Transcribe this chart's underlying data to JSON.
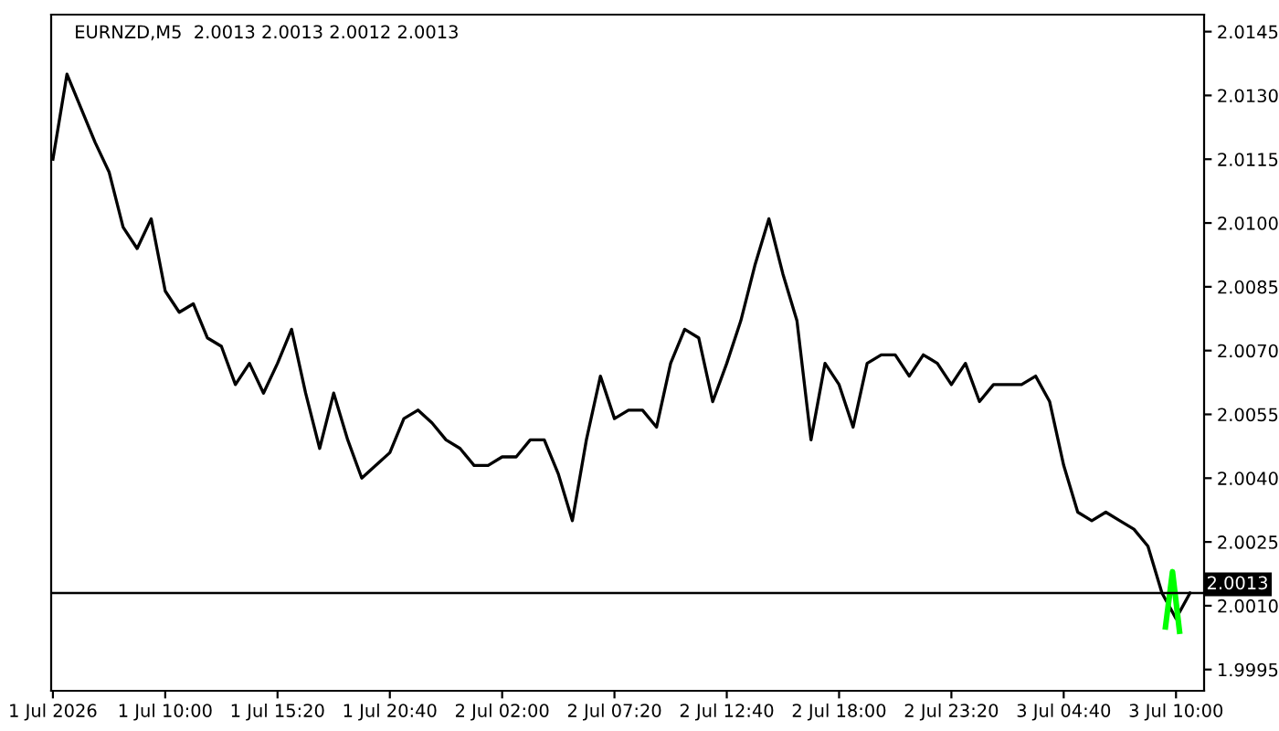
{
  "chart_data": {
    "type": "line",
    "title": "EURNZD,M5  2.0013 2.0013 2.0012 2.0013",
    "x": [
      "2026-07-01T04:40",
      "2026-07-01T05:20",
      "2026-07-01T06:00",
      "2026-07-01T06:40",
      "2026-07-01T07:20",
      "2026-07-01T08:00",
      "2026-07-01T08:40",
      "2026-07-01T09:20",
      "2026-07-01T10:00",
      "2026-07-01T10:40",
      "2026-07-01T11:20",
      "2026-07-01T12:00",
      "2026-07-01T12:40",
      "2026-07-01T13:20",
      "2026-07-01T14:00",
      "2026-07-01T14:40",
      "2026-07-01T15:20",
      "2026-07-01T16:00",
      "2026-07-01T16:40",
      "2026-07-01T17:20",
      "2026-07-01T18:00",
      "2026-07-01T18:40",
      "2026-07-01T19:20",
      "2026-07-01T20:00",
      "2026-07-01T20:40",
      "2026-07-01T21:20",
      "2026-07-01T22:00",
      "2026-07-01T22:40",
      "2026-07-01T23:20",
      "2026-07-02T00:00",
      "2026-07-02T00:40",
      "2026-07-02T01:20",
      "2026-07-02T02:00",
      "2026-07-02T02:40",
      "2026-07-02T03:20",
      "2026-07-02T04:00",
      "2026-07-02T04:40",
      "2026-07-02T05:20",
      "2026-07-02T06:00",
      "2026-07-02T06:40",
      "2026-07-02T07:20",
      "2026-07-02T08:00",
      "2026-07-02T08:40",
      "2026-07-02T09:20",
      "2026-07-02T10:00",
      "2026-07-02T10:40",
      "2026-07-02T11:20",
      "2026-07-02T12:00",
      "2026-07-02T12:40",
      "2026-07-02T13:20",
      "2026-07-02T14:00",
      "2026-07-02T14:40",
      "2026-07-02T15:20",
      "2026-07-02T16:00",
      "2026-07-02T16:40",
      "2026-07-02T17:20",
      "2026-07-02T18:00",
      "2026-07-02T18:40",
      "2026-07-02T19:20",
      "2026-07-02T20:00",
      "2026-07-02T20:40",
      "2026-07-02T21:20",
      "2026-07-02T22:00",
      "2026-07-02T22:40",
      "2026-07-02T23:20",
      "2026-07-03T00:00",
      "2026-07-03T00:40",
      "2026-07-03T01:20",
      "2026-07-03T02:00",
      "2026-07-03T02:40",
      "2026-07-03T03:20",
      "2026-07-03T04:00",
      "2026-07-03T04:40",
      "2026-07-03T05:20",
      "2026-07-03T06:00",
      "2026-07-03T06:40",
      "2026-07-03T07:20",
      "2026-07-03T08:00",
      "2026-07-03T08:40",
      "2026-07-03T09:20",
      "2026-07-03T10:00",
      "2026-07-03T10:40"
    ],
    "series": [
      {
        "color": "#000000",
        "values": [
          2.0115,
          2.0135,
          2.0127,
          2.0119,
          2.0112,
          2.0099,
          2.0094,
          2.0101,
          2.0084,
          2.0079,
          2.0081,
          2.0073,
          2.0071,
          2.0062,
          2.0067,
          2.006,
          2.0067,
          2.0075,
          2.006,
          2.0047,
          2.006,
          2.0049,
          2.004,
          2.0043,
          2.0046,
          2.0054,
          2.0056,
          2.0053,
          2.0049,
          2.0047,
          2.0043,
          2.0043,
          2.0045,
          2.0045,
          2.0049,
          2.0049,
          2.0041,
          2.003,
          2.0049,
          2.0064,
          2.0054,
          2.0056,
          2.0056,
          2.0052,
          2.0067,
          2.0075,
          2.0073,
          2.0058,
          2.0067,
          2.0077,
          2.009,
          2.0101,
          2.0088,
          2.0077,
          2.0049,
          2.0067,
          2.0062,
          2.0052,
          2.0067,
          2.0069,
          2.0069,
          2.0064,
          2.0069,
          2.0067,
          2.0062,
          2.0067,
          2.0058,
          2.0062,
          2.0062,
          2.0062,
          2.0064,
          2.0058,
          2.0043,
          2.0032,
          2.003,
          2.0032,
          2.003,
          2.0028,
          2.0024,
          2.0013,
          2.0007,
          2.0013
        ]
      },
      {
        "color": "#00ff00",
        "x": [
          "2026-07-03T09:30",
          "2026-07-03T09:50",
          "2026-07-03T10:10"
        ],
        "values": [
          2.0005,
          2.0018,
          2.0004
        ]
      }
    ],
    "xlim": [
      "2026-07-01T04:35",
      "2026-07-03T11:20"
    ],
    "xticks": [
      {
        "value": "2026-07-01T04:40",
        "label": "1 Jul 2026"
      },
      {
        "value": "2026-07-01T10:00",
        "label": "1 Jul 10:00"
      },
      {
        "value": "2026-07-01T15:20",
        "label": "1 Jul 15:20"
      },
      {
        "value": "2026-07-01T20:40",
        "label": "1 Jul 20:40"
      },
      {
        "value": "2026-07-02T02:00",
        "label": "2 Jul 02:00"
      },
      {
        "value": "2026-07-02T07:20",
        "label": "2 Jul 07:20"
      },
      {
        "value": "2026-07-02T12:40",
        "label": "2 Jul 12:40"
      },
      {
        "value": "2026-07-02T18:00",
        "label": "2 Jul 18:00"
      },
      {
        "value": "2026-07-02T23:20",
        "label": "2 Jul 23:20"
      },
      {
        "value": "2026-07-03T04:40",
        "label": "3 Jul 04:40"
      },
      {
        "value": "2026-07-03T10:00",
        "label": "3 Jul 10:00"
      }
    ],
    "ylim": [
      1.999,
      2.0149
    ],
    "yticks": [
      1.9995,
      {
        "value": 2.001,
        "label": "2.0010"
      },
      2.0025,
      {
        "value": 2.004,
        "label": "2.0040"
      },
      2.0055,
      {
        "value": 2.007,
        "label": "2.0070"
      },
      2.0085,
      {
        "value": 2.01,
        "label": "2.0100"
      },
      2.0115,
      {
        "value": 2.013,
        "label": "2.0130"
      },
      2.0145
    ],
    "ref_lines": [
      {
        "axis": "y",
        "value": 2.0013,
        "label": "2.0013",
        "color": "#000000"
      }
    ],
    "grid": false,
    "legend": false,
    "marker": "none",
    "line_style": "solid"
  }
}
